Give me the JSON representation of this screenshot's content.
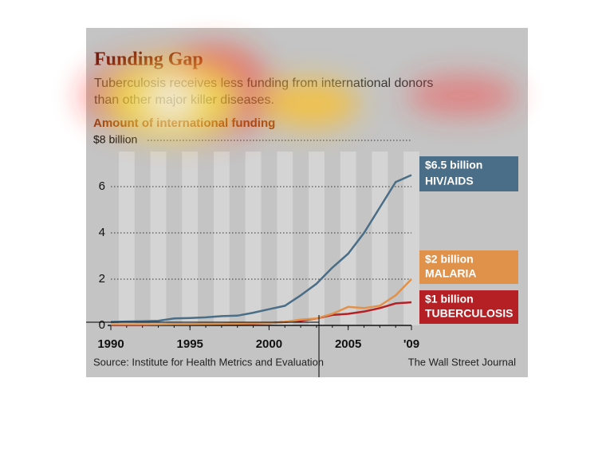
{
  "chart_data": {
    "type": "line",
    "title": "Funding Gap",
    "subtitle": [
      "Tuberculosis receives less funding from international donors",
      "than other major killer diseases."
    ],
    "y_label": "Amount of international funding",
    "x": [
      1990,
      1991,
      1992,
      1993,
      1994,
      1995,
      1996,
      1997,
      1998,
      1999,
      2000,
      2001,
      2002,
      2003,
      2004,
      2005,
      2006,
      2007,
      2008,
      2009
    ],
    "series": [
      {
        "name": "HIV/AIDS",
        "color": "#4a6e88",
        "values": [
          0.15,
          0.17,
          0.18,
          0.2,
          0.3,
          0.32,
          0.35,
          0.4,
          0.42,
          0.55,
          0.7,
          0.85,
          1.3,
          1.8,
          2.5,
          3.1,
          4.0,
          5.1,
          6.2,
          6.5
        ],
        "value_labels": [
          null,
          null,
          null,
          null,
          null,
          null,
          null,
          null,
          null,
          null,
          null,
          null,
          null,
          null,
          null,
          null,
          null,
          null,
          null,
          "$6.5 billion"
        ]
      },
      {
        "name": "MALARIA",
        "color": "#e0924a",
        "values": [
          0.05,
          0.05,
          0.05,
          0.05,
          0.06,
          0.06,
          0.07,
          0.07,
          0.08,
          0.09,
          0.1,
          0.15,
          0.25,
          0.3,
          0.5,
          0.8,
          0.75,
          0.85,
          1.3,
          2.0
        ],
        "value_labels": [
          null,
          null,
          null,
          null,
          null,
          null,
          null,
          null,
          null,
          null,
          null,
          null,
          null,
          null,
          null,
          null,
          null,
          null,
          null,
          "$2 billion"
        ]
      },
      {
        "name": "TUBERCULOSIS",
        "color": "#b52025",
        "values": [
          0.03,
          0.03,
          0.03,
          0.04,
          0.04,
          0.05,
          0.05,
          0.06,
          0.07,
          0.08,
          0.1,
          0.15,
          0.2,
          0.3,
          0.45,
          0.5,
          0.6,
          0.75,
          0.95,
          1.0
        ],
        "value_labels": [
          null,
          null,
          null,
          null,
          null,
          null,
          null,
          null,
          null,
          null,
          null,
          null,
          null,
          null,
          null,
          null,
          null,
          null,
          null,
          "$1 billion"
        ]
      }
    ],
    "xlim": [
      1990,
      2009
    ],
    "xticks": [
      1990,
      1995,
      2000,
      2005,
      {
        "value": 2009,
        "label": "'09"
      }
    ],
    "ylim": [
      0,
      8
    ],
    "yticks": [
      0,
      2,
      4,
      6,
      {
        "value": 8,
        "label": "$8 billion"
      }
    ],
    "grid": true,
    "source": "Source: Institute for Health Metrics and Evaluation",
    "credit": "The Wall Street Journal"
  }
}
